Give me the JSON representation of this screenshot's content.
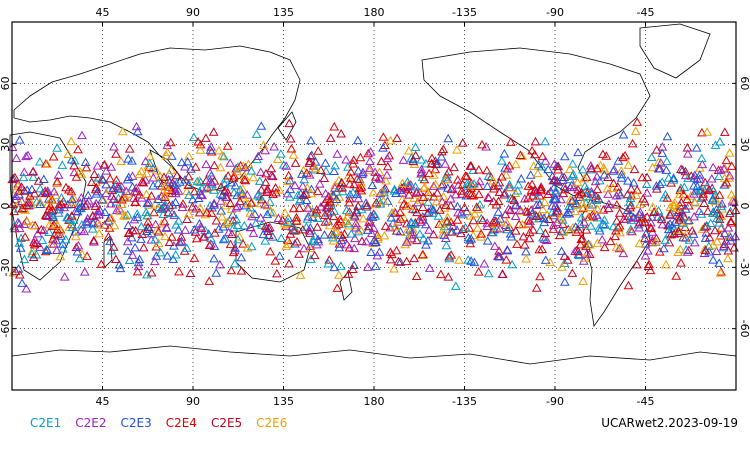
{
  "map": {
    "projection": "cylindrical-equidistant",
    "lon_range": [
      0,
      360
    ],
    "lat_range": [
      -90,
      90
    ],
    "lon_ticks": [
      45,
      90,
      135,
      180,
      225,
      270,
      315
    ],
    "lon_tick_labels": [
      "45",
      "90",
      "135",
      "180",
      "-135",
      "-90",
      "-45"
    ],
    "lat_ticks": [
      60,
      30,
      0,
      -30,
      -60
    ],
    "lat_tick_labels": [
      "60",
      "30",
      "0",
      "-30",
      "-60"
    ],
    "grid": "dotted",
    "coastlines": true,
    "marker": "open-triangle",
    "observation_lat_band": [
      -45,
      45
    ]
  },
  "legend": [
    {
      "id": "C2E1",
      "label": "C2E1",
      "color": "#00a0c8"
    },
    {
      "id": "C2E2",
      "label": "C2E2",
      "color": "#a020c0"
    },
    {
      "id": "C2E3",
      "label": "C2E3",
      "color": "#1e50e0"
    },
    {
      "id": "C2E4",
      "label": "C2E4",
      "color": "#e00000"
    },
    {
      "id": "C2E5",
      "label": "C2E5",
      "color": "#c00020"
    },
    {
      "id": "C2E6",
      "label": "C2E6",
      "color": "#f0a000"
    }
  ],
  "run_label": "UCARwet2.2023-09-19"
}
